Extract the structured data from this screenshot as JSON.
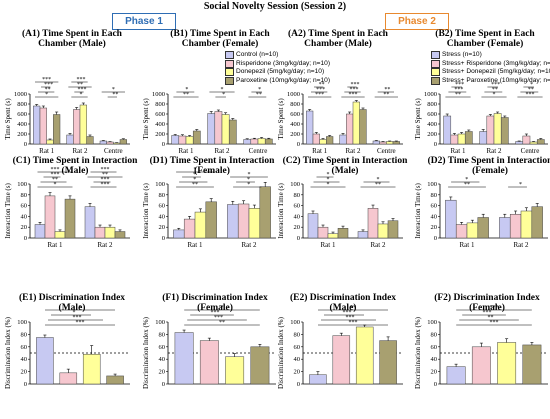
{
  "figure": {
    "title": "Social Novelty Session (Session 2)",
    "phase1_label": "Phase 1",
    "phase2_label": "Phase 2",
    "phase1_color": "#2e6db4",
    "phase2_color": "#e8892f"
  },
  "legend_phase1": [
    {
      "label": "Control (n=10)",
      "color": "#c7c9f2"
    },
    {
      "label": "Risperidone (3mg/kg/day; n=10)",
      "color": "#f6c7cf"
    },
    {
      "label": "Donepezil (5mg/kg/day; n=10)",
      "color": "#ffff99"
    },
    {
      "label": "Paroxetine (10mg/kg/day; n=10)",
      "color": "#a8a070"
    }
  ],
  "legend_phase2": [
    {
      "label": "Stress (n=10)",
      "color": "#c7c9f2"
    },
    {
      "label": "Stress+ Risperidone (3mg/kg/day; n=10)",
      "color": "#f6c7cf"
    },
    {
      "label": "Stress+ Donepezil (5mg/kg/day; n=10)",
      "color": "#ffff99"
    },
    {
      "label": "Stress+ Paroxetine (10mg/kg/day; n=10)",
      "color": "#a8a070"
    }
  ],
  "chart_data": [
    {
      "id": "A1",
      "type": "bar",
      "title": "(A1) Time Spent in Each",
      "subtitle": "Chamber (Male)",
      "ylabel": "Time Spent (s)",
      "ylim": [
        0,
        1000
      ],
      "yticks": [
        0,
        200,
        400,
        600,
        800,
        1000
      ],
      "categories": [
        "Rat 1",
        "Rat 2",
        "Centre"
      ],
      "series": [
        [
          760,
          180,
          60
        ],
        [
          720,
          690,
          40
        ],
        [
          80,
          780,
          20
        ],
        [
          590,
          150,
          90
        ]
      ],
      "errors": [
        [
          30,
          30,
          10
        ],
        [
          40,
          40,
          8
        ],
        [
          20,
          40,
          6
        ],
        [
          50,
          30,
          15
        ]
      ],
      "annotations": [
        "*",
        "**",
        "***",
        "***",
        "*",
        "***",
        "**",
        "***",
        "**",
        "*"
      ]
    },
    {
      "id": "B1",
      "type": "bar",
      "title": "(B1) Time Spent in Each",
      "subtitle": "Chamber (Female)",
      "ylabel": "Time Spent (s)",
      "ylim": [
        0,
        1000
      ],
      "yticks": [
        0,
        200,
        400,
        600,
        800,
        1000
      ],
      "categories": [
        "Rat 1",
        "Rat 2",
        "Centre"
      ],
      "series": [
        [
          170,
          610,
          90
        ],
        [
          160,
          650,
          100
        ],
        [
          150,
          590,
          110
        ],
        [
          260,
          480,
          100
        ]
      ],
      "errors": [
        [
          20,
          40,
          15
        ],
        [
          25,
          30,
          15
        ],
        [
          20,
          35,
          20
        ],
        [
          30,
          30,
          15
        ]
      ],
      "annotations": [
        "**",
        "*",
        "*",
        "*",
        "**",
        "*"
      ]
    },
    {
      "id": "A2",
      "type": "bar",
      "title": "(A2) Time Spent in Each",
      "subtitle": "Chamber (Male)",
      "ylabel": "Time Spent (s)",
      "ylim": [
        0,
        1000
      ],
      "yticks": [
        0,
        200,
        400,
        600,
        800,
        1000
      ],
      "categories": [
        "Rat 1",
        "Rat 2",
        "Centre"
      ],
      "series": [
        [
          660,
          180,
          60
        ],
        [
          200,
          600,
          40
        ],
        [
          90,
          840,
          50
        ],
        [
          150,
          690,
          50
        ]
      ],
      "errors": [
        [
          30,
          30,
          10
        ],
        [
          30,
          40,
          10
        ],
        [
          20,
          30,
          10
        ],
        [
          20,
          30,
          10
        ]
      ],
      "annotations": [
        "***",
        "***",
        "**",
        "***",
        "***",
        "***",
        "**",
        "**"
      ]
    },
    {
      "id": "B2",
      "type": "bar",
      "title": "(B2) Time Spent in Each",
      "subtitle": "Chamber (Female)",
      "ylabel": "Time Spent (s)",
      "ylim": [
        0,
        1000
      ],
      "yticks": [
        0,
        200,
        400,
        600,
        800,
        1000
      ],
      "categories": [
        "Rat 1",
        "Rat 2",
        "Centre"
      ],
      "series": [
        [
          560,
          250,
          50
        ],
        [
          180,
          560,
          160
        ],
        [
          200,
          610,
          40
        ],
        [
          250,
          530,
          90
        ]
      ],
      "errors": [
        [
          40,
          40,
          10
        ],
        [
          30,
          30,
          40
        ],
        [
          30,
          30,
          10
        ],
        [
          30,
          30,
          20
        ]
      ],
      "annotations": [
        "**",
        "***",
        "***",
        "*",
        "**",
        "***",
        "***",
        "**",
        "*"
      ]
    },
    {
      "id": "C1",
      "type": "bar",
      "title": "(C1) Time Spent in Interaction",
      "subtitle": "(Male)",
      "ylabel": "Interaction Time (s)",
      "ylim": [
        0,
        100
      ],
      "yticks": [
        0,
        20,
        40,
        60,
        80,
        100
      ],
      "categories": [
        "Rat 1",
        "Rat 2"
      ],
      "series": [
        [
          25,
          58
        ],
        [
          78,
          20
        ],
        [
          12,
          20
        ],
        [
          72,
          12
        ]
      ],
      "errors": [
        [
          4,
          6
        ],
        [
          6,
          4
        ],
        [
          3,
          4
        ],
        [
          6,
          3
        ]
      ],
      "annotations": [
        "*",
        "**",
        "***",
        "***",
        "***",
        "***",
        "**",
        "***"
      ]
    },
    {
      "id": "D1",
      "type": "bar",
      "title": "(D1) Time Spent in Interaction",
      "subtitle": "(Female)",
      "ylabel": "Interaction Time (s)",
      "ylim": [
        0,
        100
      ],
      "yticks": [
        0,
        20,
        40,
        60,
        80,
        100
      ],
      "categories": [
        "Rat 1",
        "Rat 2"
      ],
      "series": [
        [
          15,
          62
        ],
        [
          35,
          63
        ],
        [
          48,
          55
        ],
        [
          67,
          95
        ]
      ],
      "errors": [
        [
          3,
          6
        ],
        [
          5,
          6
        ],
        [
          6,
          6
        ],
        [
          6,
          8
        ]
      ],
      "annotations": [
        "**",
        "*",
        "*",
        "*",
        "*",
        "*",
        "*"
      ]
    },
    {
      "id": "C2",
      "type": "bar",
      "title": "(C2) Time Spent in Interaction",
      "subtitle": "(Male)",
      "ylabel": "Interaction Time (s)",
      "ylim": [
        0,
        100
      ],
      "yticks": [
        0,
        20,
        40,
        60,
        80,
        100
      ],
      "categories": [
        "Rat 1",
        "Rat 2"
      ],
      "series": [
        [
          45,
          12
        ],
        [
          20,
          55
        ],
        [
          8,
          26
        ],
        [
          18,
          32
        ]
      ],
      "errors": [
        [
          5,
          3
        ],
        [
          4,
          6
        ],
        [
          3,
          4
        ],
        [
          4,
          4
        ]
      ],
      "annotations": [
        "*",
        "*",
        "*",
        "**",
        "*"
      ]
    },
    {
      "id": "D2",
      "type": "bar",
      "title": "(D2) Time Spent in Interaction",
      "subtitle": "(Female)",
      "ylabel": "Interaction Time (s)",
      "ylim": [
        0,
        100
      ],
      "yticks": [
        0,
        20,
        40,
        60,
        80,
        100
      ],
      "categories": [
        "Rat 1",
        "Rat 2"
      ],
      "series": [
        [
          70,
          38
        ],
        [
          25,
          44
        ],
        [
          28,
          50
        ],
        [
          38,
          58
        ]
      ],
      "errors": [
        [
          6,
          6
        ],
        [
          4,
          6
        ],
        [
          5,
          6
        ],
        [
          6,
          6
        ]
      ],
      "annotations": [
        "**",
        "*",
        "*"
      ]
    },
    {
      "id": "E1",
      "type": "bar",
      "title": "(E1) Discrimination Index",
      "subtitle": "(Male)",
      "ylabel": "Discrimination Index (%)",
      "ylim": [
        0,
        100
      ],
      "yticks": [
        0,
        20,
        40,
        60,
        80,
        100
      ],
      "reference_line": 50,
      "categories": [
        ""
      ],
      "series": [
        [
          75
        ],
        [
          18
        ],
        [
          48
        ],
        [
          13
        ]
      ],
      "errors": [
        [
          4
        ],
        [
          6
        ],
        [
          14
        ],
        [
          3
        ]
      ],
      "annotations": [
        "***",
        "***",
        "*",
        "*"
      ]
    },
    {
      "id": "F1",
      "type": "bar",
      "title": "(F1) Discrimination Index",
      "subtitle": "(Female)",
      "ylabel": "Discrimination Index (%)",
      "ylim": [
        0,
        100
      ],
      "yticks": [
        0,
        20,
        40,
        60,
        80,
        100
      ],
      "reference_line": 50,
      "categories": [
        ""
      ],
      "series": [
        [
          83
        ],
        [
          70
        ],
        [
          44
        ],
        [
          60
        ]
      ],
      "errors": [
        [
          4
        ],
        [
          4
        ],
        [
          5
        ],
        [
          4
        ]
      ],
      "annotations": [
        "**",
        "***",
        "***",
        "*"
      ]
    },
    {
      "id": "E2",
      "type": "bar",
      "title": "(E2) Discrimination Index",
      "subtitle": "(Male)",
      "ylabel": "Discrimination Index (%)",
      "ylim": [
        0,
        100
      ],
      "yticks": [
        0,
        20,
        40,
        60,
        80,
        100
      ],
      "reference_line": 50,
      "categories": [
        ""
      ],
      "series": [
        [
          15
        ],
        [
          78
        ],
        [
          92
        ],
        [
          70
        ]
      ],
      "errors": [
        [
          5
        ],
        [
          4
        ],
        [
          3
        ],
        [
          6
        ]
      ],
      "annotations": [
        "***",
        "***",
        "***",
        "**"
      ]
    },
    {
      "id": "F2",
      "type": "bar",
      "title": "(F2) Discrimination Index",
      "subtitle": "(Female)",
      "ylabel": "Discrimination Index (%)",
      "ylim": [
        0,
        100
      ],
      "yticks": [
        0,
        20,
        40,
        60,
        80,
        100
      ],
      "reference_line": 50,
      "categories": [
        ""
      ],
      "series": [
        [
          28
        ],
        [
          60
        ],
        [
          67
        ],
        [
          63
        ]
      ],
      "errors": [
        [
          4
        ],
        [
          6
        ],
        [
          6
        ],
        [
          4
        ]
      ],
      "annotations": [
        "***",
        "**",
        "***",
        "***"
      ]
    }
  ]
}
